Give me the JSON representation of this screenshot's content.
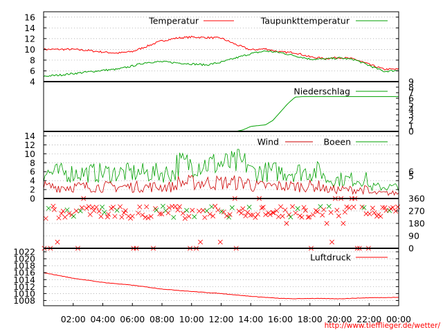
{
  "credit": "http://www.tiefflieger.de/wetter/",
  "x_axis": {
    "ticks": [
      "02:00",
      "04:00",
      "06:00",
      "08:00",
      "10:00",
      "12:00",
      "14:00",
      "16:00",
      "18:00",
      "20:00",
      "22:00",
      "00:00"
    ],
    "range_hours": [
      0,
      24
    ]
  },
  "colors": {
    "red": "#ff0000",
    "darkred": "#cc0000",
    "green": "#00a000",
    "grid": "#999999"
  },
  "chart_data": [
    {
      "type": "line",
      "panel": "temperature",
      "ylim": [
        4,
        17
      ],
      "yticks": [
        4,
        6,
        8,
        10,
        12,
        14,
        16
      ],
      "grid": true,
      "legend": "top",
      "series": [
        {
          "name": "Temperatur",
          "color": "#ff0000",
          "x": [
            0,
            1,
            2,
            3,
            4,
            5,
            6,
            7,
            8,
            9,
            10,
            11,
            12,
            13,
            14,
            15,
            16,
            17,
            18,
            19,
            20,
            21,
            22,
            23,
            24
          ],
          "values": [
            10.0,
            10.0,
            10.0,
            9.8,
            9.5,
            9.3,
            9.6,
            10.6,
            11.6,
            12.1,
            12.3,
            12.2,
            12.1,
            10.9,
            9.9,
            10.1,
            9.5,
            9.4,
            8.6,
            8.3,
            8.5,
            8.2,
            7.2,
            6.3,
            6.3
          ]
        },
        {
          "name": "Taupunkttemperatur",
          "color": "#00a000",
          "x": [
            0,
            1,
            2,
            3,
            4,
            5,
            6,
            7,
            8,
            9,
            10,
            11,
            12,
            13,
            14,
            15,
            16,
            17,
            18,
            19,
            20,
            21,
            22,
            23,
            24
          ],
          "values": [
            5.0,
            5.2,
            5.5,
            5.8,
            6.1,
            6.3,
            6.9,
            7.6,
            7.7,
            7.5,
            7.3,
            7.1,
            7.6,
            8.4,
            9.2,
            9.7,
            9.4,
            8.8,
            8.2,
            8.2,
            8.4,
            8.1,
            7.0,
            5.9,
            6.1
          ]
        }
      ]
    },
    {
      "type": "line",
      "panel": "precipitation",
      "ylim": [
        0,
        9
      ],
      "yticks": [
        0,
        1,
        2,
        3,
        4,
        5,
        6,
        7,
        8,
        9
      ],
      "grid": false,
      "legend": "top-right",
      "series": [
        {
          "name": "Niederschlag",
          "color": "#00a000",
          "x": [
            0,
            13,
            13.5,
            14,
            15,
            15.5,
            16,
            16.5,
            17,
            17.5,
            24
          ],
          "values": [
            0,
            0,
            0.3,
            0.9,
            1.2,
            2.0,
            3.5,
            5.0,
            6.2,
            6.3,
            6.3
          ]
        }
      ]
    },
    {
      "type": "line",
      "panel": "wind",
      "ylim": [
        0,
        15
      ],
      "yticks": [
        0,
        2,
        4,
        6,
        8,
        10,
        12,
        14
      ],
      "yticks_right": [
        5,
        6
      ],
      "grid": true,
      "legend": "top",
      "series": [
        {
          "name": "Wind",
          "color": "#cc0000",
          "mean_level": 2.5
        },
        {
          "name": "Boeen",
          "color": "#00a000",
          "mean_level": 5.5
        }
      ]
    },
    {
      "type": "scatter",
      "panel": "wind-direction",
      "ylim": [
        0,
        360
      ],
      "yticks_right": [
        0,
        90,
        180,
        270,
        360
      ],
      "grid": true,
      "marker": "x",
      "dominant_directions": [
        225,
        250,
        270,
        295
      ]
    },
    {
      "type": "line",
      "panel": "pressure",
      "ylim": [
        1006.5,
        1023
      ],
      "yticks": [
        1008,
        1010,
        1012,
        1014,
        1016,
        1018,
        1020,
        1022
      ],
      "grid": true,
      "legend": "top-right",
      "series": [
        {
          "name": "Luftdruck",
          "color": "#ff0000",
          "x": [
            0,
            2,
            4,
            6,
            8,
            10,
            12,
            14,
            16,
            17,
            18,
            20,
            22,
            24
          ],
          "values": [
            1016.0,
            1014.4,
            1013.2,
            1012.4,
            1011.3,
            1010.6,
            1010.0,
            1009.2,
            1008.6,
            1008.5,
            1008.6,
            1008.5,
            1008.8,
            1008.9
          ]
        }
      ]
    }
  ]
}
